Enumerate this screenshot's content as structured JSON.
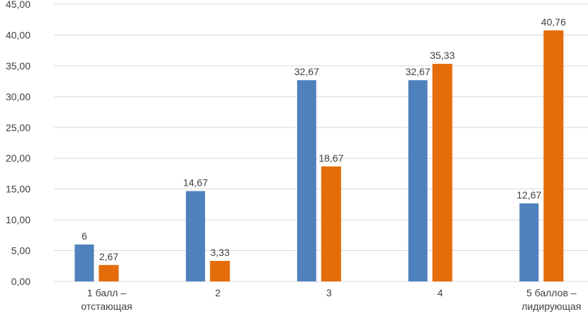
{
  "chart_data": {
    "type": "bar",
    "categories": [
      [
        "1 балл –",
        "отстающая"
      ],
      [
        "2"
      ],
      [
        "3"
      ],
      [
        "4"
      ],
      [
        "5 баллов –",
        "лидирующая"
      ]
    ],
    "series": [
      {
        "values": [
          6,
          14.67,
          32.67,
          32.67,
          12.67
        ],
        "labels": [
          "6",
          "14,67",
          "32,67",
          "32,67",
          "12,67"
        ],
        "color": "#4f81bd"
      },
      {
        "values": [
          2.67,
          3.33,
          18.67,
          35.33,
          40.76
        ],
        "labels": [
          "2,67",
          "3,33",
          "18,67",
          "35,33",
          "40,76"
        ],
        "color": "#e46c0a"
      }
    ],
    "yticks": [
      "0,00",
      "5,00",
      "10,00",
      "15,00",
      "20,00",
      "25,00",
      "30,00",
      "35,00",
      "40,00",
      "45,00"
    ],
    "ylim": [
      0,
      45
    ],
    "grid": true,
    "legend": "none"
  }
}
